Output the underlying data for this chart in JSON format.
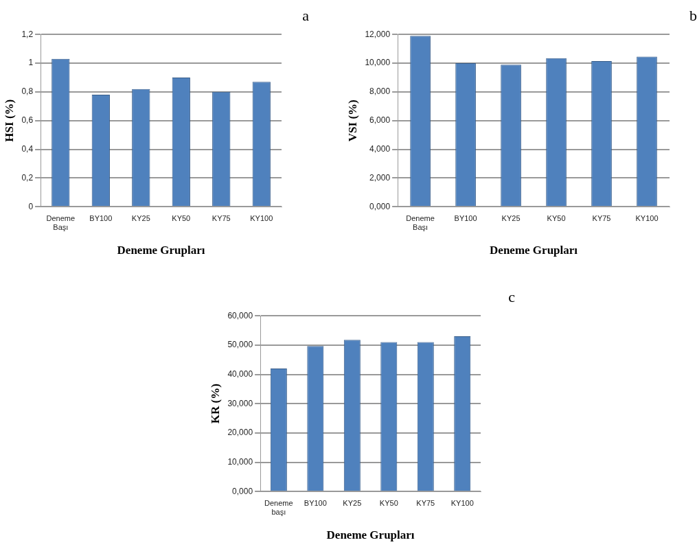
{
  "chart_data": [
    {
      "type": "bar",
      "annotations": [
        "a"
      ],
      "categories": [
        "Deneme Başı",
        "BY100",
        "KY25",
        "KY50",
        "KY75",
        "KY100"
      ],
      "values": [
        1.03,
        0.78,
        0.82,
        0.9,
        0.8,
        0.87
      ],
      "color": "#4f81bd",
      "ylim": [
        0,
        1.2
      ],
      "yticks": [
        0,
        {
          "value": 0.2,
          "label": "0,2"
        },
        {
          "value": 0.4,
          "label": "0,4"
        },
        {
          "value": 0.6,
          "label": "0,6"
        },
        {
          "value": 0.8,
          "label": "0,8"
        },
        1,
        {
          "value": 1.2,
          "label": "1,2"
        }
      ],
      "grid": "y",
      "xlabel": "Deneme Grupları",
      "ylabel": "HSI (%)"
    },
    {
      "type": "bar",
      "annotations": [
        "b"
      ],
      "categories": [
        "Deneme Başı",
        "BY100",
        "KY25",
        "KY50",
        "KY75",
        "KY100"
      ],
      "values": [
        11.9,
        10.0,
        9.9,
        10.35,
        10.15,
        10.45
      ],
      "color": "#4f81bd",
      "ylim": [
        0,
        12
      ],
      "yticks": [
        {
          "value": 0,
          "label": "0,000"
        },
        {
          "value": 2,
          "label": "2,000"
        },
        {
          "value": 4,
          "label": "4,000"
        },
        {
          "value": 6,
          "label": "6,000"
        },
        {
          "value": 8,
          "label": "8,000"
        },
        {
          "value": 10,
          "label": "10,000"
        },
        {
          "value": 12,
          "label": "12,000"
        }
      ],
      "grid": "y",
      "xlabel": "Deneme Grupları",
      "ylabel": "VSI (%)"
    },
    {
      "type": "bar",
      "annotations": [
        "c"
      ],
      "categories": [
        "Deneme başı",
        "BY100",
        "KY25",
        "KY50",
        "KY75",
        "KY100"
      ],
      "values": [
        42,
        49.7,
        51.8,
        51,
        51,
        53
      ],
      "color": "#4f81bd",
      "ylim": [
        0,
        60
      ],
      "yticks": [
        {
          "value": 0,
          "label": "0,000"
        },
        {
          "value": 10,
          "label": "10,000"
        },
        {
          "value": 20,
          "label": "20,000"
        },
        {
          "value": 30,
          "label": "30,000"
        },
        {
          "value": 40,
          "label": "40,000"
        },
        {
          "value": 50,
          "label": "50,000"
        },
        {
          "value": 60,
          "label": "60,000"
        }
      ],
      "grid": "y",
      "xlabel": "Deneme Grupları",
      "ylabel": "KR (%)"
    }
  ]
}
